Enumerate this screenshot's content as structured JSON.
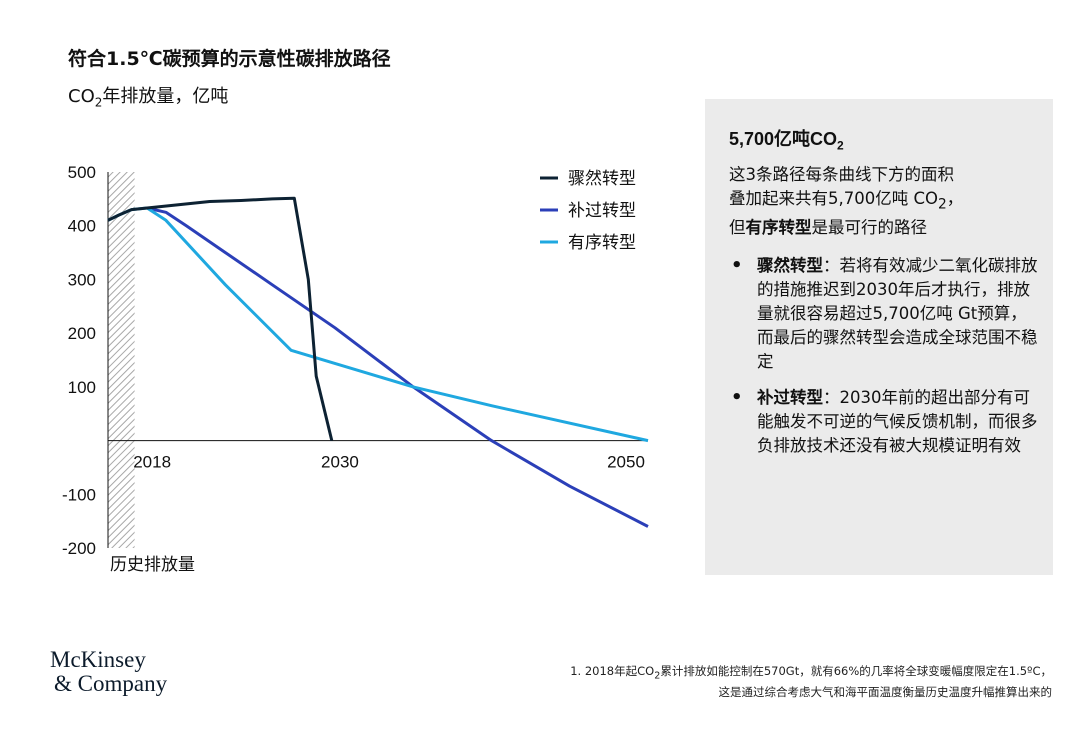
{
  "header": {
    "title": "符合1.5℃碳预算的示意性碳排放路径",
    "subtitle_prefix": "CO",
    "subtitle_sub": "2",
    "subtitle_suffix": "年排放量，亿吨"
  },
  "chart_data": {
    "type": "line",
    "ylim": [
      -200,
      500
    ],
    "xlim": [
      2015.5,
      2050
    ],
    "yticks": [
      500,
      400,
      300,
      200,
      100,
      -100,
      -200
    ],
    "xtick_labels": [
      {
        "x": 2018,
        "label": "2018"
      },
      {
        "x": 2030,
        "label": "2030"
      },
      {
        "x": 2050,
        "label": "2050"
      }
    ],
    "historical_band": {
      "from": 2015.5,
      "to": 2017.2,
      "label": "历史排放量"
    },
    "legend_position": "top-right",
    "series": [
      {
        "name": "骤然转型",
        "color": "#0d2233",
        "points": [
          [
            2015.5,
            410
          ],
          [
            2016.2,
            420
          ],
          [
            2017.0,
            430
          ],
          [
            2018,
            433
          ],
          [
            2020,
            439
          ],
          [
            2022,
            445
          ],
          [
            2024,
            447
          ],
          [
            2026,
            450
          ],
          [
            2027.4,
            451
          ],
          [
            2028.3,
            300
          ],
          [
            2028.8,
            120
          ],
          [
            2029.8,
            0
          ]
        ]
      },
      {
        "name": "补过转型",
        "color": "#2b3fb8",
        "points": [
          [
            2018,
            433
          ],
          [
            2019.2,
            425
          ],
          [
            2020.5,
            400
          ],
          [
            2023,
            350
          ],
          [
            2026,
            290
          ],
          [
            2030,
            210
          ],
          [
            2035,
            100
          ],
          [
            2040,
            0
          ],
          [
            2045,
            -85
          ],
          [
            2050,
            -160
          ]
        ]
      },
      {
        "name": "有序转型",
        "color": "#1fa8e0",
        "points": [
          [
            2015.5,
            410
          ],
          [
            2016.2,
            420
          ],
          [
            2017.0,
            430
          ],
          [
            2018,
            433
          ],
          [
            2019.2,
            410
          ],
          [
            2023,
            290
          ],
          [
            2027.2,
            168
          ],
          [
            2035,
            100
          ],
          [
            2040,
            65
          ],
          [
            2050,
            0
          ]
        ]
      }
    ]
  },
  "panel": {
    "title_prefix": "5,700亿吨CO",
    "title_sub": "2",
    "para_line1": "这3条路径每条曲线下方的面积",
    "para_line2a": "叠加起来共有5,700亿吨 CO",
    "para_line2sub": "2",
    "para_line2b": "，",
    "para_line3_bold": "有序转型",
    "para_line3_pre": "但",
    "para_line3_post": "是最可行的路径",
    "bullets": [
      {
        "bold": "骤然转型",
        "text": "：若将有效减少二氧化碳排放的措施推迟到2030年后才执行，排放量就很容易超过5,700亿吨 Gt预算，而最后的骤然转型会造成全球范围不稳定"
      },
      {
        "bold": "补过转型",
        "text": "：2030年前的超出部分有可能触发不可逆的气候反馈机制，而很多负排放技术还没有被大规模证明有效"
      }
    ]
  },
  "logo": {
    "line1": "McKinsey",
    "line2": "& Company"
  },
  "footnote": {
    "line1_pre": "1. 2018年起CO",
    "line1_sub": "2",
    "line1_post": "累计排放如能控制在570Gt，就有66%的几率将全球变暖幅度限定在1.5ºC，",
    "line2": "这是通过综合考虑大气和海平面温度衡量历史温度升幅推算出来的"
  }
}
